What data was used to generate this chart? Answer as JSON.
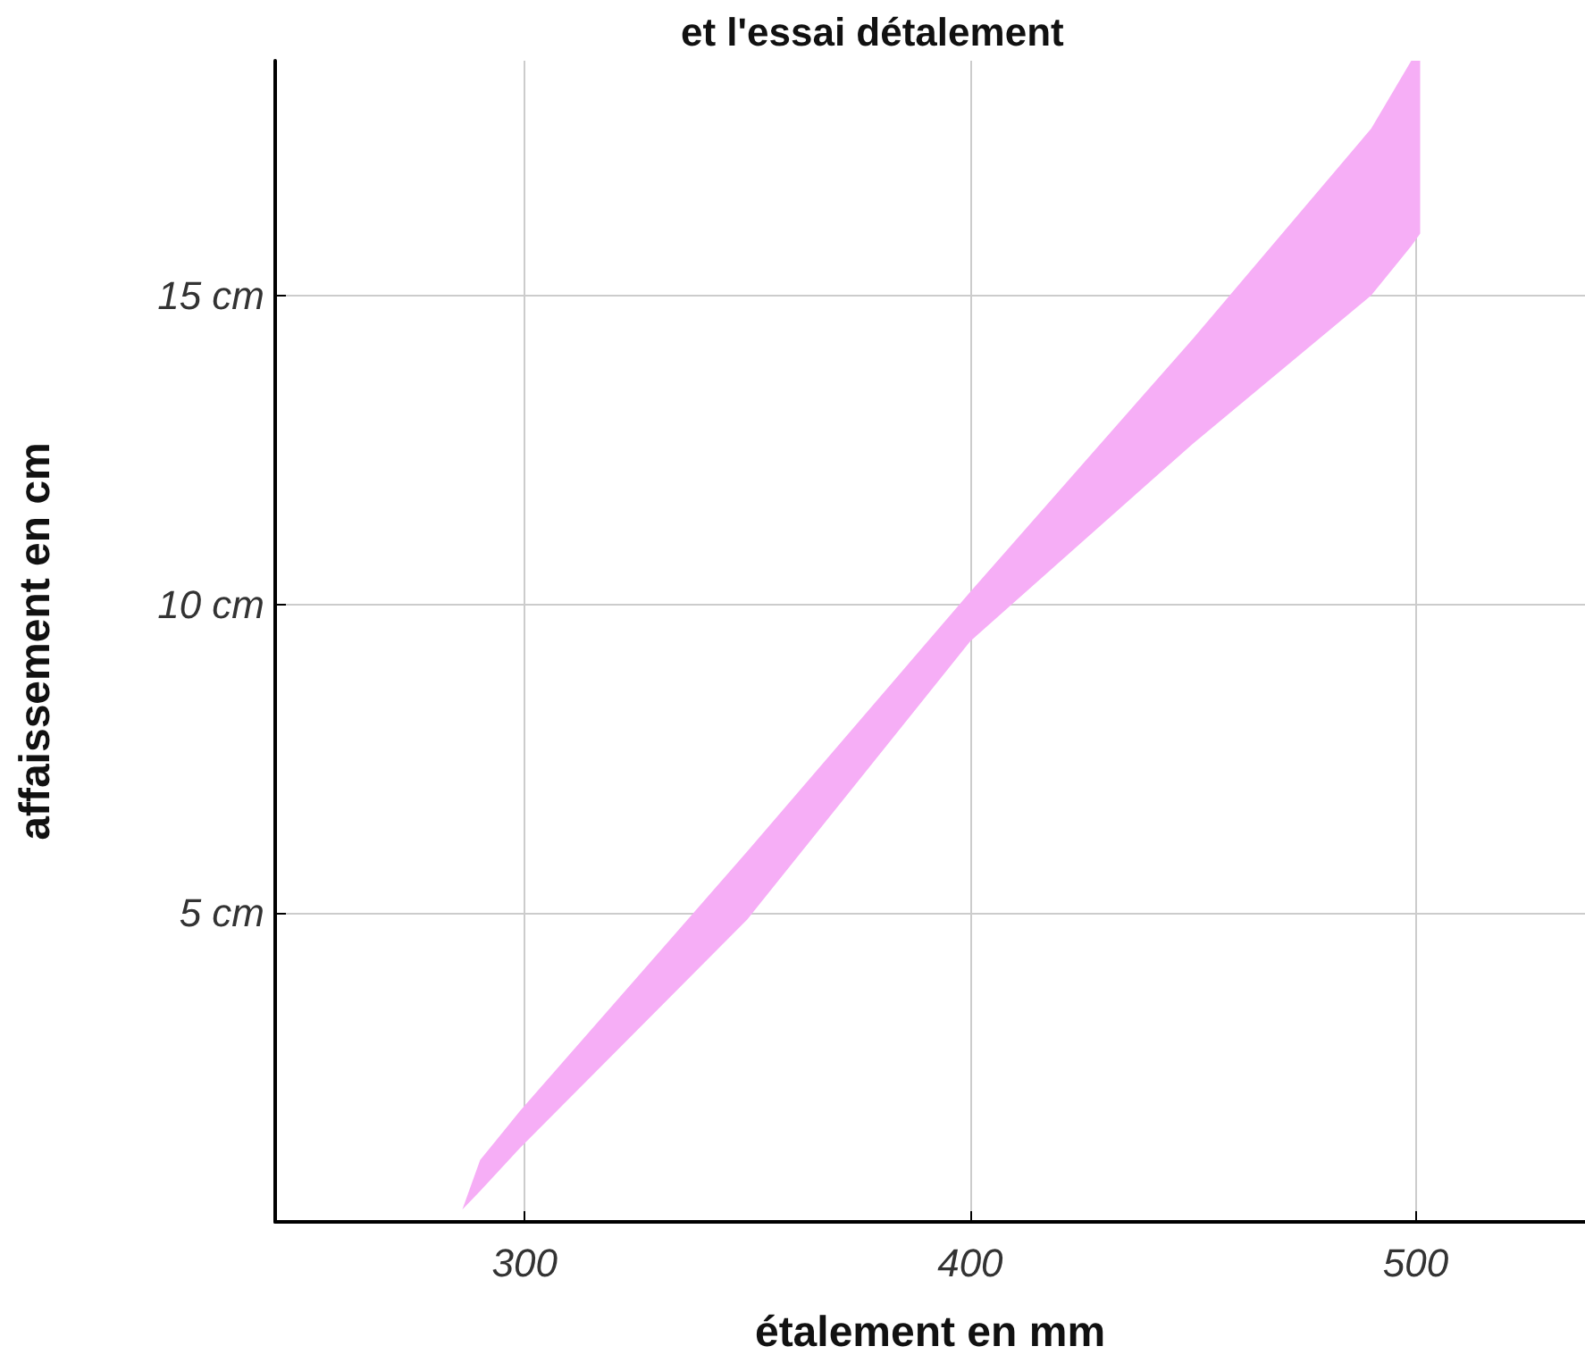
{
  "chart_data": {
    "type": "area",
    "title": "et l'essai détalement",
    "xlabel": "étalement en mm",
    "ylabel": "affaissement en cm",
    "series": [
      {
        "color": "#f6aef6",
        "x": [
          286,
          290,
          299,
          350,
          400,
          450,
          490,
          499,
          501
        ],
        "lower": [
          0.2,
          0.5,
          1.2,
          4.9,
          9.4,
          12.6,
          15.0,
          15.8,
          16.0
        ],
        "upper": [
          0.2,
          1.0,
          1.8,
          6.0,
          10.2,
          14.3,
          17.7,
          18.8,
          18.8
        ],
        "values": [
          null,
          null,
          null,
          null,
          null,
          null,
          null,
          null,
          null
        ]
      }
    ],
    "xlim": [
      244,
      538
    ],
    "xticks": [
      300,
      400,
      500
    ],
    "ylim": [
      0,
      18.8
    ],
    "yticks": [
      {
        "value": 5,
        "label": "5 cm"
      },
      {
        "value": 10,
        "label": "10 cm"
      },
      {
        "value": 15,
        "label": "15 cm"
      }
    ],
    "grid": true
  }
}
